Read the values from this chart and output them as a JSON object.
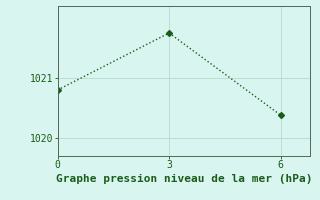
{
  "x": [
    0,
    3,
    6
  ],
  "y": [
    1020.8,
    1021.75,
    1020.38
  ],
  "line_color": "#1a5c1a",
  "bg_color": "#d8f5ef",
  "grid_color": "#b8d8d0",
  "xlabel": "Graphe pression niveau de la mer (hPa)",
  "xlabel_color": "#1a5c1a",
  "xticks": [
    0,
    3,
    6
  ],
  "yticks": [
    1020,
    1021
  ],
  "ylim": [
    1019.7,
    1022.2
  ],
  "xlim": [
    0,
    6.8
  ],
  "xlabel_fontsize": 8,
  "tick_fontsize": 7,
  "marker": "D",
  "marker_size": 3,
  "linewidth": 1.0,
  "linestyle": "dotted"
}
